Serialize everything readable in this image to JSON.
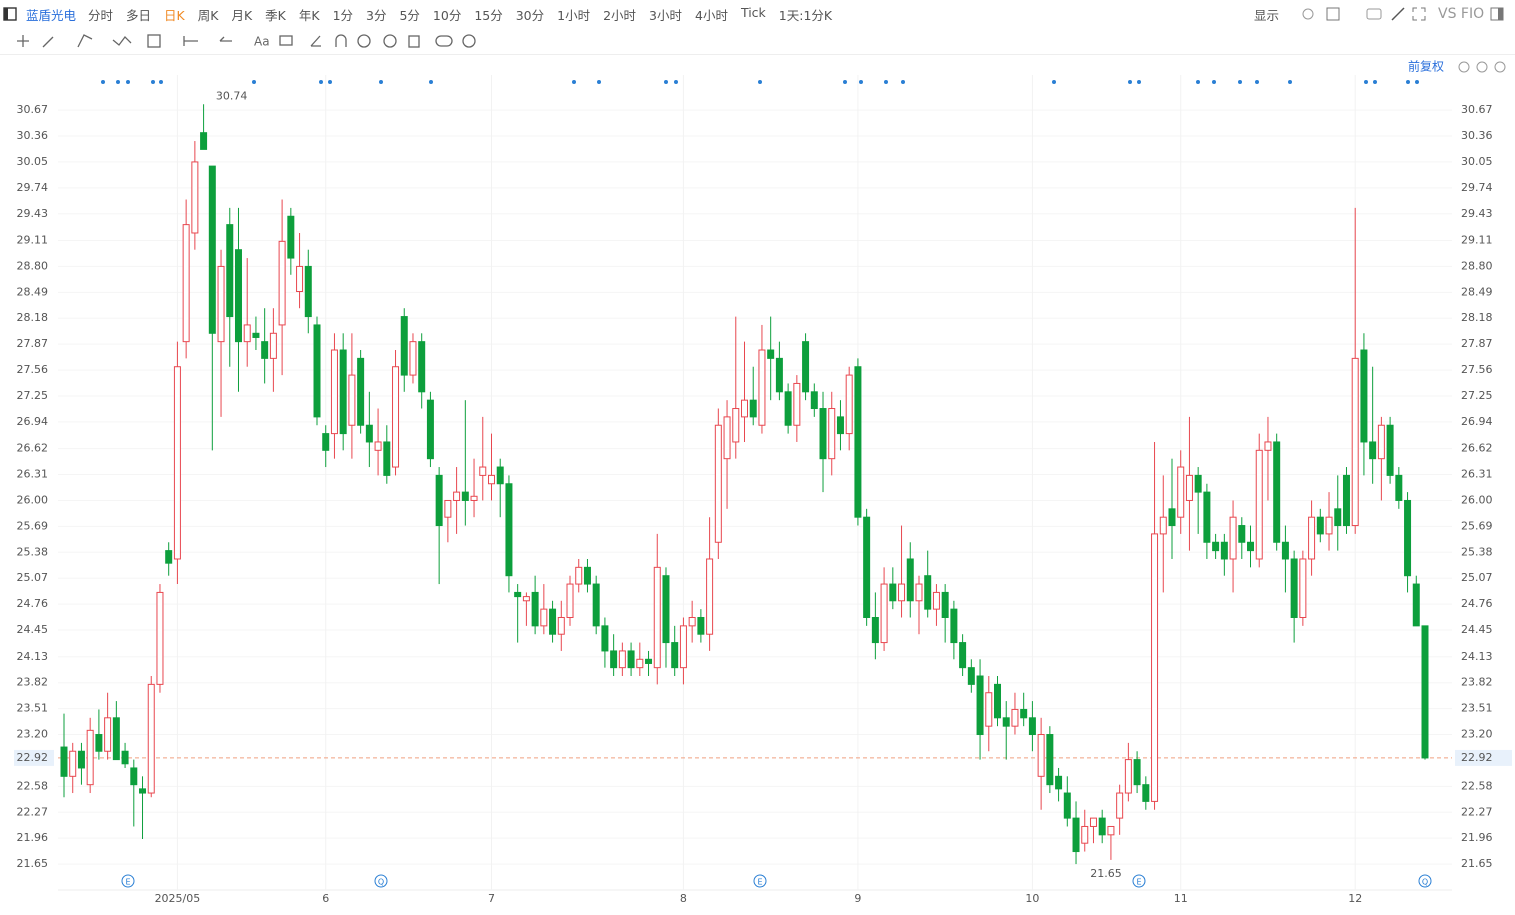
{
  "toolbar": {
    "symbol": "蓝盾光电",
    "periods": [
      "分时",
      "多日",
      "日K",
      "周K",
      "月K",
      "季K",
      "年K",
      "1分",
      "3分",
      "5分",
      "10分",
      "15分",
      "30分",
      "1小时",
      "2小时",
      "3小时",
      "4小时",
      "Tick",
      "1天:1分K"
    ],
    "active": 2,
    "display": "显示",
    "compare": "VS FIO"
  },
  "chart_data": {
    "type": "candlestick",
    "adjust": "前复权",
    "up_color": "#e8474f",
    "down_color": "#0d9f3c",
    "ylim": [
      21.34,
      31.09
    ],
    "yticks": [
      30.67,
      30.36,
      30.05,
      29.74,
      29.43,
      29.11,
      {
        "value": 28.8,
        "label": "28.80"
      },
      28.49,
      28.18,
      27.87,
      27.56,
      27.25,
      26.94,
      26.62,
      26.31,
      {
        "value": 26,
        "label": "26.00"
      },
      25.69,
      25.38,
      25.07,
      24.76,
      24.45,
      24.13,
      23.82,
      23.51,
      {
        "value": 23.2,
        "label": "23.20"
      },
      22.58,
      22.27,
      21.96,
      21.65
    ],
    "last_price": 22.92,
    "high_label": "30.74",
    "low_label": "21.65",
    "events": [
      "E",
      "Q",
      "E",
      "E",
      "Q"
    ],
    "categories": [
      null,
      null,
      null,
      null,
      null,
      null,
      null,
      null,
      null,
      null,
      null,
      null,
      null,
      "2025/05",
      null,
      null,
      null,
      null,
      null,
      null,
      null,
      null,
      null,
      null,
      null,
      null,
      null,
      null,
      null,
      null,
      "6",
      null,
      null,
      null,
      null,
      null,
      null,
      null,
      null,
      null,
      null,
      null,
      null,
      null,
      null,
      null,
      null,
      null,
      null,
      "7",
      null,
      null,
      null,
      null,
      null,
      null,
      null,
      null,
      null,
      null,
      null,
      null,
      null,
      null,
      null,
      null,
      null,
      null,
      null,
      null,
      null,
      "8",
      null,
      null,
      null,
      null,
      null,
      null,
      null,
      null,
      null,
      null,
      null,
      null,
      null,
      null,
      null,
      null,
      null,
      null,
      null,
      "9",
      null,
      null,
      null,
      null,
      null,
      null,
      null,
      null,
      null,
      null,
      null,
      null,
      null,
      null,
      null,
      null,
      null,
      null,
      null,
      "10",
      null,
      null,
      null,
      null,
      null,
      null,
      null,
      null,
      null,
      null,
      null,
      null,
      null,
      null,
      null,
      null,
      "11",
      null,
      null,
      null,
      null,
      null,
      null,
      null,
      null,
      null,
      null,
      null,
      null,
      null,
      null,
      null,
      null,
      null,
      null,
      null,
      "12",
      null,
      null,
      null,
      null,
      null,
      null,
      null,
      null
    ],
    "ohlc": [
      [
        23.05,
        23.45,
        22.45,
        22.7
      ],
      [
        22.7,
        23.1,
        22.5,
        23.0
      ],
      [
        23.0,
        23.1,
        22.6,
        22.8
      ],
      [
        22.6,
        23.4,
        22.5,
        23.25
      ],
      [
        23.2,
        23.5,
        22.9,
        23.0
      ],
      [
        23.0,
        23.7,
        22.9,
        23.4
      ],
      [
        23.4,
        23.6,
        22.9,
        22.9
      ],
      [
        23.0,
        23.1,
        22.8,
        22.85
      ],
      [
        22.8,
        22.9,
        22.1,
        22.6
      ],
      [
        22.55,
        22.7,
        21.95,
        22.5
      ],
      [
        22.5,
        23.9,
        22.45,
        23.8
      ],
      [
        23.8,
        25.0,
        23.7,
        24.9
      ],
      [
        25.4,
        25.5,
        25.1,
        25.25
      ],
      [
        25.3,
        27.9,
        25.0,
        27.6
      ],
      [
        27.9,
        29.6,
        27.7,
        29.3
      ],
      [
        29.2,
        30.3,
        29.0,
        30.05
      ],
      [
        30.4,
        30.74,
        30.2,
        30.2
      ],
      [
        30.0,
        30.0,
        26.6,
        28.0
      ],
      [
        27.9,
        29.0,
        27.0,
        28.8
      ],
      [
        29.3,
        29.5,
        27.6,
        28.2
      ],
      [
        29.0,
        29.5,
        27.3,
        27.9
      ],
      [
        27.9,
        28.9,
        27.6,
        28.1
      ],
      [
        28.0,
        28.2,
        27.8,
        27.95
      ],
      [
        27.9,
        28.3,
        27.4,
        27.7
      ],
      [
        27.7,
        28.3,
        27.3,
        28.0
      ],
      [
        28.1,
        29.6,
        27.5,
        29.1
      ],
      [
        29.4,
        29.5,
        28.7,
        28.9
      ],
      [
        28.5,
        29.2,
        28.3,
        28.8
      ],
      [
        28.8,
        29.0,
        28.0,
        28.2
      ],
      [
        28.1,
        28.2,
        26.9,
        27.0
      ],
      [
        26.8,
        26.9,
        26.4,
        26.6
      ],
      [
        26.8,
        28.0,
        26.5,
        27.8
      ],
      [
        27.8,
        28.0,
        26.6,
        26.8
      ],
      [
        26.9,
        28.0,
        26.5,
        27.5
      ],
      [
        27.7,
        27.8,
        26.8,
        26.9
      ],
      [
        26.9,
        27.3,
        26.4,
        26.7
      ],
      [
        26.6,
        27.1,
        26.3,
        26.7
      ],
      [
        26.7,
        26.9,
        26.2,
        26.3
      ],
      [
        26.4,
        27.8,
        26.3,
        27.6
      ],
      [
        28.2,
        28.3,
        27.3,
        27.5
      ],
      [
        27.5,
        28.0,
        27.4,
        27.9
      ],
      [
        27.9,
        28.0,
        27.1,
        27.3
      ],
      [
        27.2,
        27.3,
        26.4,
        26.5
      ],
      [
        26.3,
        26.4,
        25.0,
        25.7
      ],
      [
        25.8,
        26.0,
        25.5,
        26.0
      ],
      [
        26.0,
        26.4,
        25.6,
        26.1
      ],
      [
        26.1,
        27.2,
        25.7,
        26.0
      ],
      [
        26.0,
        26.5,
        25.8,
        26.05
      ],
      [
        26.3,
        27.0,
        26.0,
        26.4
      ],
      [
        26.2,
        26.8,
        26.0,
        26.3
      ],
      [
        26.4,
        26.5,
        25.8,
        26.2
      ],
      [
        26.2,
        26.3,
        24.9,
        25.1
      ],
      [
        24.9,
        25.0,
        24.3,
        24.85
      ],
      [
        24.8,
        24.9,
        24.5,
        24.85
      ],
      [
        24.9,
        25.1,
        24.4,
        24.5
      ],
      [
        24.5,
        25.0,
        24.4,
        24.7
      ],
      [
        24.7,
        24.8,
        24.3,
        24.4
      ],
      [
        24.4,
        24.8,
        24.2,
        24.6
      ],
      [
        24.6,
        25.1,
        24.5,
        25.0
      ],
      [
        25.0,
        25.3,
        24.9,
        25.2
      ],
      [
        25.2,
        25.3,
        24.9,
        25.0
      ],
      [
        25.0,
        25.1,
        24.4,
        24.5
      ],
      [
        24.5,
        24.6,
        24.0,
        24.2
      ],
      [
        24.2,
        24.4,
        23.9,
        24.0
      ],
      [
        24.0,
        24.3,
        23.9,
        24.2
      ],
      [
        24.2,
        24.3,
        23.9,
        24.0
      ],
      [
        24.0,
        24.3,
        23.9,
        24.1
      ],
      [
        24.1,
        24.2,
        23.9,
        24.05
      ],
      [
        24.0,
        25.6,
        23.8,
        25.2
      ],
      [
        25.1,
        25.2,
        24.0,
        24.3
      ],
      [
        24.3,
        24.5,
        23.9,
        24.0
      ],
      [
        24.0,
        24.6,
        23.8,
        24.5
      ],
      [
        24.5,
        24.8,
        24.3,
        24.6
      ],
      [
        24.6,
        24.7,
        24.3,
        24.4
      ],
      [
        24.4,
        25.8,
        24.2,
        25.3
      ],
      [
        25.5,
        27.1,
        25.3,
        26.9
      ],
      [
        26.5,
        27.2,
        25.9,
        27.0
      ],
      [
        26.7,
        28.2,
        26.5,
        27.1
      ],
      [
        27.0,
        27.9,
        26.7,
        27.2
      ],
      [
        27.2,
        27.6,
        26.9,
        27.0
      ],
      [
        26.9,
        28.1,
        26.8,
        27.8
      ],
      [
        27.8,
        28.2,
        27.2,
        27.7
      ],
      [
        27.7,
        27.9,
        27.2,
        27.3
      ],
      [
        27.3,
        27.4,
        26.8,
        26.9
      ],
      [
        26.9,
        27.5,
        26.7,
        27.4
      ],
      [
        27.9,
        28.0,
        27.2,
        27.3
      ],
      [
        27.3,
        27.4,
        27.0,
        27.1
      ],
      [
        27.1,
        27.3,
        26.1,
        26.5
      ],
      [
        26.5,
        27.3,
        26.3,
        27.1
      ],
      [
        27.0,
        27.2,
        26.6,
        26.8
      ],
      [
        26.8,
        27.6,
        26.6,
        27.5
      ],
      [
        27.6,
        27.7,
        25.7,
        25.8
      ],
      [
        25.8,
        25.9,
        24.5,
        24.6
      ],
      [
        24.6,
        24.9,
        24.1,
        24.3
      ],
      [
        24.3,
        25.2,
        24.2,
        25.0
      ],
      [
        25.0,
        25.2,
        24.7,
        24.8
      ],
      [
        24.8,
        25.7,
        24.6,
        25.0
      ],
      [
        25.3,
        25.5,
        24.6,
        24.8
      ],
      [
        24.8,
        25.1,
        24.4,
        25.0
      ],
      [
        25.1,
        25.4,
        24.6,
        24.7
      ],
      [
        24.7,
        25.0,
        24.5,
        24.9
      ],
      [
        24.9,
        25.0,
        24.3,
        24.6
      ],
      [
        24.7,
        24.8,
        24.1,
        24.3
      ],
      [
        24.3,
        24.4,
        23.9,
        24.0
      ],
      [
        24.0,
        24.1,
        23.7,
        23.8
      ],
      [
        23.9,
        24.1,
        22.9,
        23.2
      ],
      [
        23.3,
        23.9,
        23.0,
        23.7
      ],
      [
        23.8,
        23.9,
        23.3,
        23.4
      ],
      [
        23.4,
        23.6,
        22.9,
        23.3
      ],
      [
        23.3,
        23.7,
        23.2,
        23.5
      ],
      [
        23.5,
        23.7,
        23.3,
        23.4
      ],
      [
        23.4,
        23.6,
        23.0,
        23.2
      ],
      [
        22.7,
        23.4,
        22.3,
        23.2
      ],
      [
        23.2,
        23.3,
        22.5,
        22.6
      ],
      [
        22.7,
        22.8,
        22.4,
        22.55
      ],
      [
        22.5,
        22.7,
        22.1,
        22.2
      ],
      [
        22.2,
        22.4,
        21.65,
        21.8
      ],
      [
        21.9,
        22.3,
        21.8,
        22.1
      ],
      [
        22.1,
        22.2,
        21.9,
        22.2
      ],
      [
        22.2,
        22.3,
        21.9,
        22.0
      ],
      [
        22.0,
        22.1,
        21.7,
        22.1
      ],
      [
        22.2,
        22.6,
        22.0,
        22.5
      ],
      [
        22.5,
        23.1,
        22.4,
        22.9
      ],
      [
        22.9,
        23.0,
        22.5,
        22.6
      ],
      [
        22.6,
        22.7,
        22.3,
        22.4
      ],
      [
        22.4,
        26.7,
        22.3,
        25.6
      ],
      [
        25.6,
        26.3,
        24.9,
        25.8
      ],
      [
        25.9,
        26.5,
        25.3,
        25.7
      ],
      [
        25.8,
        26.6,
        25.6,
        26.4
      ],
      [
        26.0,
        27.0,
        25.4,
        26.3
      ],
      [
        26.3,
        26.4,
        25.6,
        26.1
      ],
      [
        26.1,
        26.2,
        25.3,
        25.5
      ],
      [
        25.5,
        25.6,
        25.3,
        25.4
      ],
      [
        25.5,
        25.6,
        25.1,
        25.3
      ],
      [
        25.3,
        26.0,
        24.9,
        25.8
      ],
      [
        25.7,
        25.8,
        25.3,
        25.5
      ],
      [
        25.5,
        25.7,
        25.2,
        25.4
      ],
      [
        25.3,
        26.8,
        25.2,
        26.6
      ],
      [
        26.6,
        27.0,
        26.0,
        26.7
      ],
      [
        26.7,
        26.8,
        25.4,
        25.5
      ],
      [
        25.5,
        25.7,
        24.9,
        25.3
      ],
      [
        25.3,
        25.4,
        24.3,
        24.6
      ],
      [
        24.6,
        25.4,
        24.5,
        25.3
      ],
      [
        25.3,
        26.0,
        25.1,
        25.8
      ],
      [
        25.8,
        25.9,
        25.5,
        25.6
      ],
      [
        25.6,
        26.1,
        25.4,
        25.8
      ],
      [
        25.9,
        26.3,
        25.4,
        25.7
      ],
      [
        26.3,
        26.4,
        25.6,
        25.7
      ],
      [
        25.7,
        29.5,
        25.6,
        27.7
      ],
      [
        27.8,
        28.0,
        26.3,
        26.7
      ],
      [
        26.7,
        27.6,
        26.2,
        26.5
      ],
      [
        26.5,
        27.0,
        26.0,
        26.9
      ],
      [
        26.9,
        27.0,
        26.2,
        26.3
      ],
      [
        26.3,
        26.4,
        25.9,
        26.0
      ],
      [
        26.0,
        26.1,
        24.9,
        25.1
      ],
      [
        25.0,
        25.1,
        24.5,
        24.5
      ],
      [
        24.5,
        24.5,
        22.9,
        22.92
      ]
    ]
  }
}
